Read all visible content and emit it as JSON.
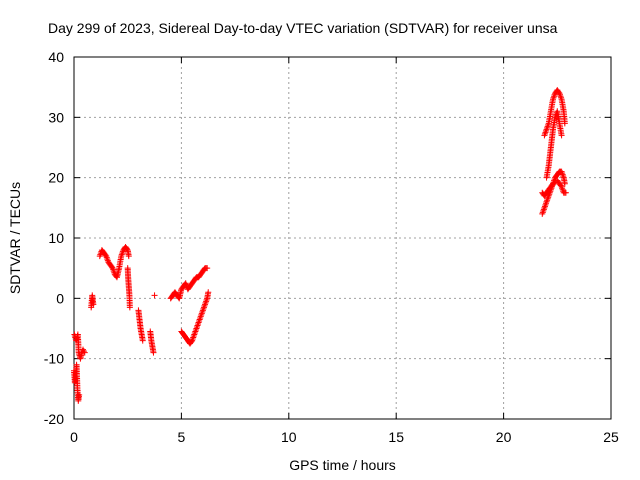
{
  "chart_data": {
    "type": "scatter",
    "title": "Day 299 of 2023, Sidereal Day-to-day VTEC variation (SDTVAR) for receiver unsa",
    "xlabel": "GPS time / hours",
    "ylabel": "SDTVAR / TECUs",
    "xlim": [
      0,
      25
    ],
    "ylim": [
      -20,
      40
    ],
    "xticks": [
      0,
      5,
      10,
      15,
      20,
      25
    ],
    "yticks": [
      -20,
      -10,
      0,
      10,
      20,
      30,
      40
    ],
    "grid": true,
    "marker": "+",
    "color": "#ff0000",
    "series": [
      {
        "name": "SDTVAR",
        "segments": [
          [
            [
              0.0,
              -12
            ],
            [
              0.04,
              -14
            ],
            [
              0.08,
              -13
            ],
            [
              0.12,
              -11
            ],
            [
              0.16,
              -15
            ],
            [
              0.2,
              -17
            ],
            [
              0.24,
              -16
            ]
          ],
          [
            [
              0.02,
              -6
            ],
            [
              0.1,
              -7
            ],
            [
              0.18,
              -6
            ],
            [
              0.22,
              -9
            ],
            [
              0.3,
              -10
            ],
            [
              0.36,
              -9
            ],
            [
              0.42,
              -8.5
            ],
            [
              0.5,
              -9
            ]
          ],
          [
            [
              0.8,
              -1.5
            ],
            [
              0.85,
              0.5
            ],
            [
              0.9,
              -1
            ]
          ],
          [
            [
              1.2,
              7
            ],
            [
              1.3,
              8
            ],
            [
              1.4,
              7.5
            ],
            [
              1.5,
              7
            ],
            [
              1.6,
              6
            ],
            [
              1.7,
              5.5
            ],
            [
              1.8,
              5
            ],
            [
              1.9,
              4
            ],
            [
              2.0,
              3.5
            ],
            [
              2.1,
              5
            ],
            [
              2.2,
              7
            ],
            [
              2.3,
              8
            ],
            [
              2.4,
              8.5
            ],
            [
              2.5,
              8
            ],
            [
              2.55,
              7
            ]
          ],
          [
            [
              2.5,
              5
            ],
            [
              2.52,
              3.5
            ],
            [
              2.55,
              2
            ],
            [
              2.58,
              0.5
            ],
            [
              2.6,
              -1.5
            ]
          ],
          [
            [
              3.0,
              -2
            ],
            [
              3.05,
              -3.5
            ],
            [
              3.1,
              -5
            ],
            [
              3.15,
              -6
            ],
            [
              3.2,
              -7
            ]
          ],
          [
            [
              3.55,
              -5.5
            ],
            [
              3.6,
              -7
            ],
            [
              3.65,
              -8
            ],
            [
              3.7,
              -9
            ]
          ],
          [
            [
              3.75,
              0.5
            ]
          ],
          [
            [
              4.5,
              0
            ],
            [
              4.6,
              0.5
            ],
            [
              4.7,
              1
            ],
            [
              4.8,
              0.5
            ],
            [
              4.9,
              0
            ],
            [
              5.0,
              1.5
            ],
            [
              5.1,
              2
            ],
            [
              5.2,
              2.5
            ],
            [
              5.3,
              1.5
            ],
            [
              5.4,
              2
            ],
            [
              5.5,
              2.5
            ],
            [
              5.6,
              3
            ],
            [
              5.7,
              3.5
            ],
            [
              5.8,
              3.5
            ],
            [
              5.9,
              4
            ],
            [
              6.0,
              4.5
            ],
            [
              6.1,
              5
            ],
            [
              6.2,
              5
            ]
          ],
          [
            [
              5.0,
              -5.5
            ],
            [
              5.1,
              -6
            ],
            [
              5.2,
              -6.5
            ],
            [
              5.3,
              -7
            ],
            [
              5.4,
              -7.5
            ],
            [
              5.5,
              -7
            ],
            [
              5.6,
              -6
            ],
            [
              5.7,
              -5
            ],
            [
              5.8,
              -4
            ],
            [
              5.9,
              -3
            ],
            [
              6.0,
              -2
            ],
            [
              6.1,
              -1
            ],
            [
              6.2,
              0
            ],
            [
              6.25,
              1
            ]
          ],
          [
            [
              21.8,
              14
            ],
            [
              21.9,
              15
            ],
            [
              22.0,
              16
            ],
            [
              22.1,
              17
            ],
            [
              22.2,
              18
            ],
            [
              22.3,
              19
            ],
            [
              22.4,
              20
            ],
            [
              22.5,
              20.5
            ],
            [
              22.6,
              21
            ],
            [
              22.7,
              21
            ],
            [
              22.8,
              20
            ],
            [
              22.85,
              19
            ]
          ],
          [
            [
              21.8,
              17.5
            ],
            [
              21.9,
              17
            ],
            [
              22.0,
              17.5
            ],
            [
              22.1,
              18
            ],
            [
              22.3,
              19
            ],
            [
              22.5,
              19.5
            ],
            [
              22.7,
              18.5
            ],
            [
              22.8,
              17.5
            ],
            [
              22.9,
              17.5
            ]
          ],
          [
            [
              21.9,
              27
            ],
            [
              22.0,
              28
            ],
            [
              22.1,
              29
            ],
            [
              22.2,
              31
            ],
            [
              22.3,
              33
            ],
            [
              22.4,
              34
            ],
            [
              22.5,
              34.5
            ],
            [
              22.6,
              34
            ],
            [
              22.7,
              33
            ],
            [
              22.8,
              31
            ],
            [
              22.85,
              29
            ]
          ],
          [
            [
              22.0,
              20
            ],
            [
              22.1,
              22
            ],
            [
              22.2,
              25
            ],
            [
              22.3,
              28
            ],
            [
              22.4,
              30
            ],
            [
              22.5,
              31
            ],
            [
              22.6,
              29
            ],
            [
              22.7,
              27
            ]
          ]
        ]
      }
    ]
  }
}
